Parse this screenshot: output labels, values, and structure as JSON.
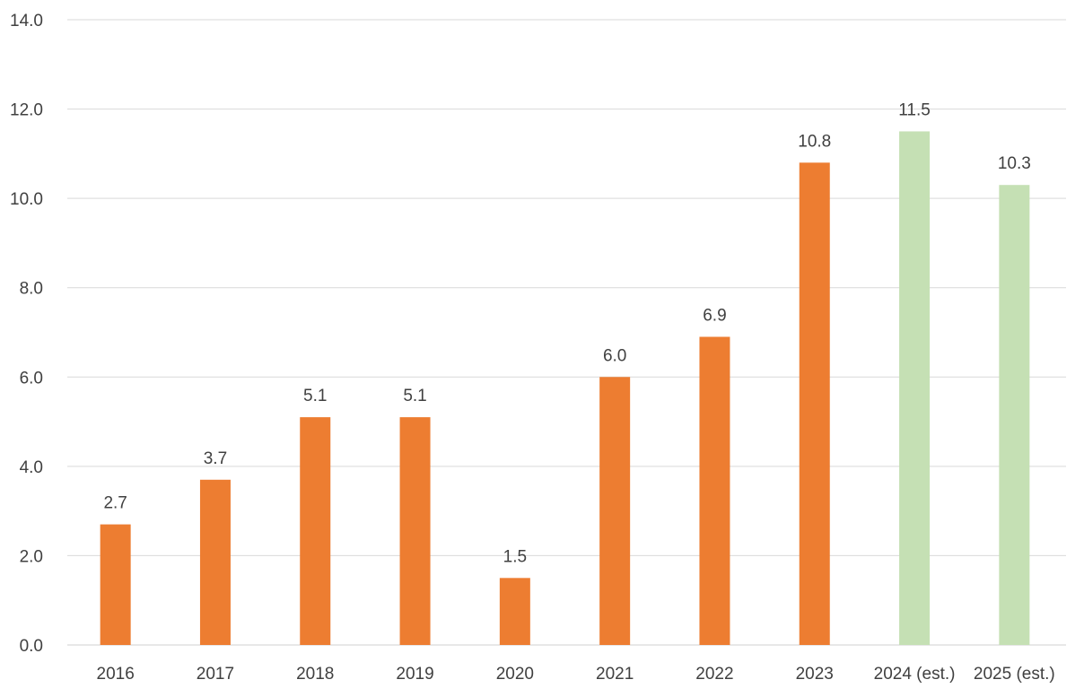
{
  "chart_data": {
    "type": "bar",
    "title": "",
    "xlabel": "",
    "ylabel": "",
    "categories": [
      "2016",
      "2017",
      "2018",
      "2019",
      "2020",
      "2021",
      "2022",
      "2023",
      "2024 (est.)",
      "2025 (est.)"
    ],
    "values": [
      2.7,
      3.7,
      5.1,
      5.1,
      1.5,
      6.0,
      6.9,
      10.8,
      11.5,
      10.3
    ],
    "data_labels": [
      "2.7",
      "3.7",
      "5.1",
      "5.1",
      "1.5",
      "6.0",
      "6.9",
      "10.8",
      "11.5",
      "10.3"
    ],
    "bar_colors": [
      "#ed7d31",
      "#ed7d31",
      "#ed7d31",
      "#ed7d31",
      "#ed7d31",
      "#ed7d31",
      "#ed7d31",
      "#ed7d31",
      "#c5e0b4",
      "#c5e0b4"
    ],
    "ylim": [
      0,
      14
    ],
    "yticks": [
      "0.0",
      "2.0",
      "4.0",
      "6.0",
      "8.0",
      "10.0",
      "12.0",
      "14.0"
    ],
    "grid": true,
    "legend": "none"
  }
}
